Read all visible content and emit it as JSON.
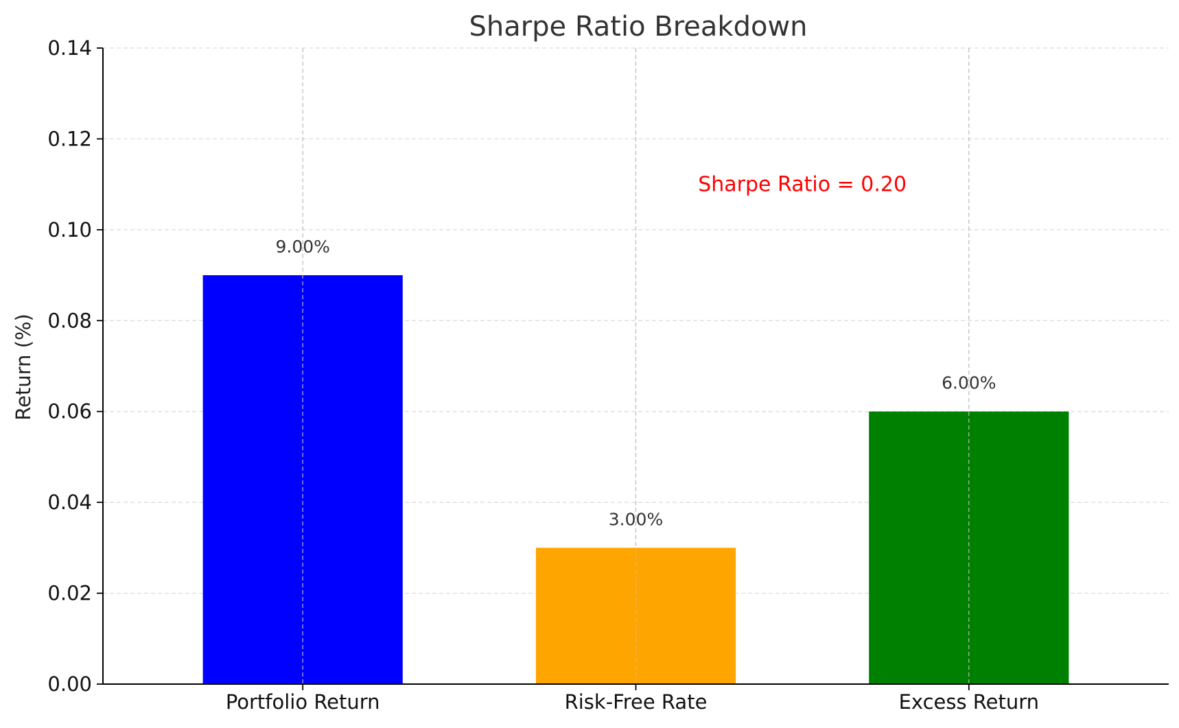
{
  "chart_data": {
    "type": "bar",
    "title": "Sharpe Ratio Breakdown",
    "xlabel": "",
    "ylabel": "Return (%)",
    "categories": [
      "Portfolio Return",
      "Risk-Free Rate",
      "Excess Return"
    ],
    "values": [
      0.09,
      0.03,
      0.06
    ],
    "data_labels": [
      "9.00%",
      "3.00%",
      "6.00%"
    ],
    "colors": [
      "#0000ff",
      "#ffa500",
      "#008000"
    ],
    "ylim": [
      0,
      0.14
    ],
    "yticks": [
      "0.00",
      "0.02",
      "0.04",
      "0.06",
      "0.08",
      "0.10",
      "0.12",
      "0.14"
    ],
    "grid": true,
    "annotation": {
      "text": "Sharpe Ratio = 0.20",
      "x_category_index": 1.5,
      "y": 0.11,
      "color": "#ff0000"
    }
  }
}
